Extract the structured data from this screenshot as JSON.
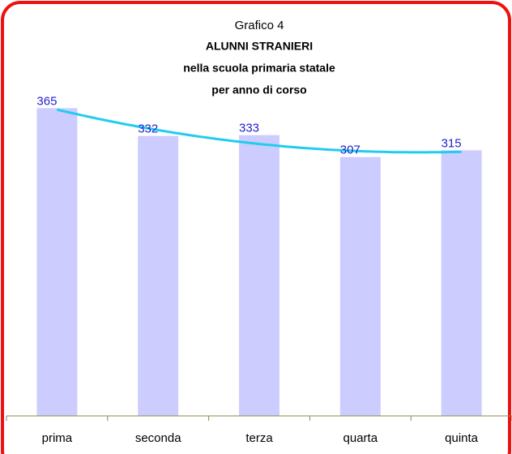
{
  "chart_data": {
    "type": "bar",
    "title": "Grafico 4",
    "subtitle": [
      "ALUNNI STRANIERI",
      "nella scuola primaria statale",
      "per anno di corso"
    ],
    "categories": [
      "prima",
      "seconda",
      "terza",
      "quarta",
      "quinta"
    ],
    "values": [
      365,
      332,
      333,
      307,
      315
    ],
    "color": "#ccccff",
    "label_color": "#2222cc",
    "trendline": true,
    "trendline_color": "#22ccee",
    "ylim": [
      0,
      400
    ]
  }
}
